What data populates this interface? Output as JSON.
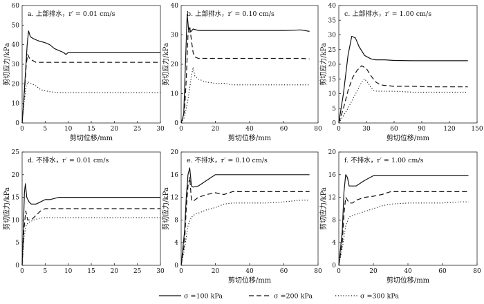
{
  "chart_data": [
    {
      "type": "line",
      "title": "a. 上部排水，r′ = 0.01 cm/s",
      "xlabel": "剪切位移/mm",
      "ylabel": "剪切应力/kPa",
      "xlim": [
        0,
        30
      ],
      "ylim": [
        0,
        60
      ],
      "xticks": [
        0,
        5,
        10,
        15,
        20,
        25,
        30
      ],
      "yticks": [
        0,
        10,
        20,
        30,
        40,
        50,
        60
      ],
      "series": [
        {
          "name": "σ=100 kPa",
          "style": "solid",
          "x": [
            0,
            0.3,
            0.7,
            1.1,
            1.4,
            1.8,
            2.5,
            3.5,
            5,
            6,
            7,
            8,
            9,
            9.5,
            10,
            12,
            15,
            20,
            25,
            30
          ],
          "y": [
            0,
            10,
            25,
            40,
            47,
            44,
            43,
            42,
            41,
            40,
            38,
            37,
            36,
            35,
            36,
            36,
            36,
            36,
            36,
            36
          ]
        },
        {
          "name": "σ=200 kPa",
          "style": "dashed",
          "x": [
            0,
            0.4,
            0.9,
            1.2,
            1.6,
            2.2,
            3,
            5,
            8,
            10,
            15,
            20,
            25,
            30
          ],
          "y": [
            0,
            12,
            30,
            35,
            33,
            32,
            31,
            31,
            31,
            31,
            31,
            31,
            31,
            31
          ]
        },
        {
          "name": "σ=300 kPa",
          "style": "dotted",
          "x": [
            0,
            0.4,
            0.9,
            1.3,
            2,
            3,
            4,
            5,
            6,
            8,
            10,
            15,
            20,
            25,
            30
          ],
          "y": [
            0,
            10,
            19,
            21,
            20,
            19,
            17,
            16.5,
            16,
            15.5,
            15.5,
            15.5,
            15.5,
            15.5,
            15.5
          ]
        }
      ]
    },
    {
      "type": "line",
      "title": "b. 上部排水，r′ = 0.10 cm/s",
      "xlabel": "剪切位移/mm",
      "ylabel": "剪切应力/kPa",
      "xlim": [
        0,
        80
      ],
      "ylim": [
        0,
        40
      ],
      "xticks": [
        0,
        20,
        40,
        60,
        80
      ],
      "yticks": [
        0,
        10,
        20,
        30,
        40
      ],
      "series": [
        {
          "name": "σ=100 kPa",
          "style": "solid",
          "x": [
            0,
            1.5,
            2.5,
            3.5,
            4.5,
            5.5,
            7,
            10,
            20,
            30,
            40,
            50,
            60,
            70,
            75
          ],
          "y": [
            0,
            3,
            20,
            37,
            31,
            31,
            32,
            31.5,
            31.5,
            31.5,
            31.5,
            31.5,
            31.5,
            31.7,
            31.2
          ]
        },
        {
          "name": "σ=200 kPa",
          "style": "dashed",
          "x": [
            0,
            2,
            3,
            4,
            5,
            6,
            7,
            8,
            10,
            15,
            20,
            30,
            40,
            50,
            60,
            70,
            75
          ],
          "y": [
            0,
            4,
            15,
            30,
            33,
            28,
            24,
            22.5,
            22,
            22,
            22,
            22,
            22,
            22,
            22,
            22,
            21.8
          ]
        },
        {
          "name": "σ=300 kPa",
          "style": "dotted",
          "x": [
            0,
            2,
            3,
            4,
            5,
            6,
            7,
            8,
            10,
            14,
            20,
            25,
            30,
            40,
            50,
            60,
            70,
            75
          ],
          "y": [
            0,
            2,
            5,
            8,
            12,
            16,
            19,
            16,
            15,
            14,
            13.5,
            13.5,
            13,
            13,
            13,
            13,
            13,
            13
          ]
        }
      ]
    },
    {
      "type": "line",
      "title": "c. 上部排水，r′ = 1.00 cm/s",
      "xlabel": "剪切位移/mm",
      "ylabel": "剪切应力/kPa",
      "xlim": [
        0,
        150
      ],
      "ylim": [
        0,
        40
      ],
      "xticks": [
        0,
        30,
        60,
        90,
        120,
        150
      ],
      "yticks": [
        0,
        5,
        10,
        15,
        20,
        25,
        30,
        35,
        40
      ],
      "series": [
        {
          "name": "σ=100 kPa",
          "style": "solid",
          "x": [
            0,
            5,
            10,
            14,
            18,
            22,
            28,
            35,
            40,
            50,
            60,
            80,
            100,
            120,
            140
          ],
          "y": [
            0,
            10,
            23,
            29.5,
            29,
            26,
            23,
            21.8,
            21.5,
            21.5,
            21.3,
            21.2,
            21.2,
            21.2,
            21.2
          ]
        },
        {
          "name": "σ=200 kPa",
          "style": "dashed",
          "x": [
            0,
            5,
            10,
            15,
            20,
            25,
            30,
            35,
            40,
            45,
            50,
            60,
            80,
            100,
            120,
            140
          ],
          "y": [
            0,
            5,
            11,
            15.5,
            18,
            19.5,
            18.5,
            16,
            14,
            13,
            12.8,
            12.5,
            12.5,
            12.3,
            12.3,
            12.3
          ]
        },
        {
          "name": "σ=300 kPa",
          "style": "dotted",
          "x": [
            0,
            10,
            15,
            20,
            25,
            28,
            32,
            35,
            38,
            42,
            50,
            60,
            80,
            100,
            120,
            140
          ],
          "y": [
            0,
            5,
            8,
            11,
            14,
            15,
            13.5,
            12,
            11,
            10.8,
            10.8,
            10.8,
            10.5,
            10.5,
            10.5,
            10.5
          ]
        }
      ]
    },
    {
      "type": "line",
      "title": "d. 不排水，r′ = 0.01 cm/s",
      "xlabel": "",
      "ylabel": "剪切应力/kPa",
      "xlim": [
        0,
        30
      ],
      "ylim": [
        0,
        25
      ],
      "xticks": [
        0,
        5,
        10,
        15,
        20,
        25,
        30
      ],
      "yticks": [
        0,
        5,
        10,
        15,
        20,
        25
      ],
      "series": [
        {
          "name": "σ=100 kPa",
          "style": "solid",
          "x": [
            0,
            0.3,
            0.5,
            0.7,
            1,
            1.5,
            2,
            3,
            4,
            5,
            6,
            8,
            10,
            15,
            20,
            25,
            30
          ],
          "y": [
            0,
            9,
            16,
            18,
            15,
            14,
            13.5,
            13.5,
            14,
            14.5,
            14.5,
            15,
            15,
            15,
            15,
            15,
            15
          ]
        },
        {
          "name": "σ=200 kPa",
          "style": "dashed",
          "x": [
            0,
            0.4,
            0.8,
            1.2,
            2,
            3,
            4,
            5,
            6,
            8,
            10,
            15,
            20,
            25,
            30
          ],
          "y": [
            0,
            8,
            12,
            10,
            10,
            11,
            12,
            12.5,
            12.5,
            12.5,
            12.5,
            12.5,
            12.5,
            12.5,
            12.5
          ]
        },
        {
          "name": "σ=300 kPa",
          "style": "dotted",
          "x": [
            0,
            0.4,
            0.9,
            1.5,
            2.5,
            3.5,
            4.5,
            5,
            6,
            8,
            10,
            15,
            20,
            25,
            30
          ],
          "y": [
            0,
            6,
            9,
            9.5,
            10,
            10.3,
            10.5,
            10.5,
            10.5,
            10.5,
            10.5,
            10.5,
            10.5,
            10.5,
            10.5
          ]
        }
      ]
    },
    {
      "type": "line",
      "title": "e. 不排水，r′ = 0.10 cm/s",
      "xlabel": "剪切位移/mm",
      "ylabel": "剪切应力/kPa",
      "xlim": [
        0,
        80
      ],
      "ylim": [
        0,
        20
      ],
      "xticks": [
        0,
        20,
        40,
        60,
        80
      ],
      "yticks": [
        0,
        4,
        8,
        12,
        16,
        20
      ],
      "series": [
        {
          "name": "σ=100 kPa",
          "style": "solid",
          "x": [
            0,
            2,
            3,
            4,
            5,
            6,
            7,
            10,
            15,
            20,
            30,
            40,
            50,
            60,
            70,
            75
          ],
          "y": [
            0,
            6,
            12,
            16,
            17.2,
            14,
            13.8,
            14,
            15,
            16,
            16,
            16,
            16,
            16,
            16,
            16
          ]
        },
        {
          "name": "σ=200 kPa",
          "style": "dashed",
          "x": [
            0,
            2,
            3,
            4,
            5,
            6,
            7,
            10,
            15,
            20,
            25,
            30,
            40,
            50,
            60,
            70,
            75
          ],
          "y": [
            0,
            4,
            10,
            14,
            15.5,
            11.5,
            11.3,
            12,
            12.5,
            12.8,
            12.5,
            13,
            13,
            13,
            13,
            13,
            13
          ]
        },
        {
          "name": "σ=300 kPa",
          "style": "dotted",
          "x": [
            0,
            2,
            4,
            6,
            8,
            10,
            15,
            20,
            25,
            30,
            40,
            50,
            60,
            70,
            75
          ],
          "y": [
            0,
            3,
            7,
            8.5,
            9,
            9.2,
            9.8,
            10.2,
            10.8,
            11,
            11,
            11,
            11.2,
            11.5,
            11.5
          ]
        }
      ]
    },
    {
      "type": "line",
      "title": "f. 不排水，r′ = 1.00 cm/s",
      "xlabel": "剪切位移/mm",
      "ylabel": "剪切应力/kPa",
      "xlim": [
        0,
        80
      ],
      "ylim": [
        0,
        20
      ],
      "xticks": [
        0,
        20,
        40,
        60,
        80
      ],
      "yticks": [
        0,
        4,
        8,
        12,
        16,
        20
      ],
      "series": [
        {
          "name": "σ=100 kPa",
          "style": "solid",
          "x": [
            0,
            2,
            3,
            4,
            5,
            6,
            8,
            10,
            15,
            20,
            30,
            40,
            50,
            60,
            70,
            75
          ],
          "y": [
            0,
            6,
            13,
            16,
            15.5,
            14,
            14,
            14,
            15,
            15.8,
            15.8,
            15.8,
            15.8,
            15.8,
            15.8,
            15.8
          ]
        },
        {
          "name": "σ=200 kPa",
          "style": "dashed",
          "x": [
            0,
            2,
            3,
            4,
            5,
            6,
            8,
            10,
            15,
            20,
            25,
            30,
            40,
            50,
            60,
            70,
            75
          ],
          "y": [
            0,
            4,
            9,
            12,
            11.5,
            11,
            11,
            11.5,
            12,
            12.2,
            12.5,
            13,
            13,
            13,
            13,
            13,
            13
          ]
        },
        {
          "name": "σ=300 kPa",
          "style": "dotted",
          "x": [
            0,
            2,
            4,
            6,
            8,
            10,
            15,
            20,
            25,
            30,
            40,
            50,
            60,
            70,
            75
          ],
          "y": [
            0,
            3,
            7,
            8.5,
            8.8,
            9,
            9.5,
            10,
            10.5,
            10.8,
            11,
            11,
            11,
            11.2,
            11.2
          ]
        }
      ]
    }
  ],
  "legend": {
    "items": [
      {
        "label": "σ =100 kPa",
        "style": "solid"
      },
      {
        "label": "σ =200 kPa",
        "style": "dashed"
      },
      {
        "label": "σ =300 kPa",
        "style": "dotted"
      }
    ]
  }
}
